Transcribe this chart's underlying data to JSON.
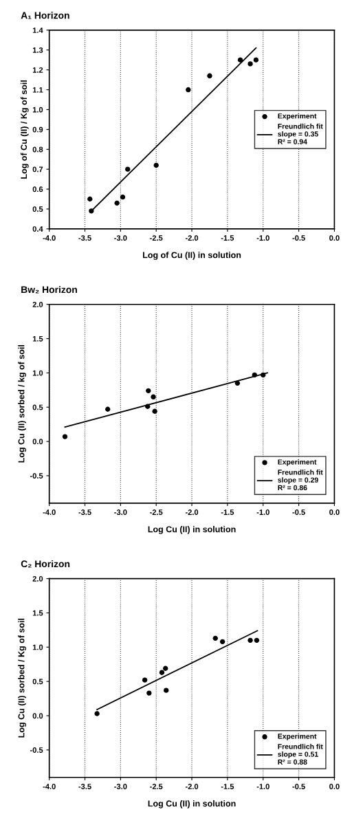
{
  "chart_data": [
    {
      "type": "scatter",
      "title": "A₁ Horizon",
      "xlabel": "Log of Cu (II) in solution",
      "ylabel": "Log of Cu (II) / Kg of soil",
      "xlim": [
        -4.0,
        0.0
      ],
      "ylim": [
        0.4,
        1.4
      ],
      "xticks": [
        {
          "value": -4,
          "label": "-4.0"
        },
        -3.5,
        {
          "value": -3,
          "label": "-3.0"
        },
        -2.5,
        {
          "value": -2,
          "label": "-2.0"
        },
        -1.5,
        {
          "value": -1,
          "label": "-1.0"
        },
        -0.5,
        {
          "value": 0,
          "label": "0.0"
        }
      ],
      "yticks": [
        0.4,
        0.5,
        0.6,
        0.7,
        0.8,
        0.9,
        {
          "value": 1,
          "label": "1.0"
        },
        1.1,
        1.2,
        1.3,
        1.4
      ],
      "grid": "x",
      "legend": "center right",
      "series": [
        {
          "name": "Experiment",
          "type": "scatter",
          "marker": "circle",
          "color": "#000000",
          "x": [
            -3.43,
            -3.41,
            -3.05,
            -2.97,
            -2.9,
            -2.5,
            -2.05,
            -1.75,
            -1.32,
            -1.18,
            -1.1
          ],
          "values": [
            0.55,
            0.49,
            0.53,
            0.56,
            0.7,
            0.72,
            1.1,
            1.17,
            1.25,
            1.23,
            1.25
          ]
        },
        {
          "name": "Freundlich fit\nslope = 0.35\nR² = 0.94",
          "type": "line",
          "line_style": "solid",
          "color": "#000000",
          "x": [
            -3.41,
            -1.1
          ],
          "values": [
            0.49,
            1.31
          ]
        }
      ]
    },
    {
      "type": "scatter",
      "title": "Bw₂ Horizon",
      "xlabel": "Log Cu (II) in solution",
      "ylabel": "Log Cu (II) sorbed / kg of soil",
      "xlim": [
        -4.0,
        0.0
      ],
      "ylim": [
        -0.9,
        2.0
      ],
      "xticks": [
        {
          "value": -4,
          "label": "-4.0"
        },
        -3.5,
        {
          "value": -3,
          "label": "-3.0"
        },
        -2.5,
        {
          "value": -2,
          "label": "-2.0"
        },
        -1.5,
        {
          "value": -1,
          "label": "-1.0"
        },
        -0.5,
        {
          "value": 0,
          "label": "0.0"
        }
      ],
      "yticks": [
        -0.5,
        {
          "value": 0,
          "label": "0.0"
        },
        0.5,
        {
          "value": 1,
          "label": "1.0"
        },
        1.5,
        {
          "value": 2,
          "label": "2.0"
        }
      ],
      "grid": "x",
      "legend": "lower right",
      "series": [
        {
          "name": "Experiment",
          "type": "scatter",
          "marker": "circle",
          "color": "#000000",
          "x": [
            -3.78,
            -3.18,
            -2.61,
            -2.62,
            -2.54,
            -2.52,
            -1.36,
            -1.12,
            -1.0
          ],
          "values": [
            0.07,
            0.47,
            0.74,
            0.51,
            0.65,
            0.44,
            0.85,
            0.97,
            0.97
          ]
        },
        {
          "name": "Freundlich fit\nslope = 0.29\nR² = 0.86",
          "type": "line",
          "line_style": "solid",
          "color": "#000000",
          "x": [
            -3.78,
            -0.94
          ],
          "values": [
            0.21,
            1.0
          ]
        }
      ]
    },
    {
      "type": "scatter",
      "title": "C₂ Horizon",
      "xlabel": "Log Cu (II) in solution",
      "ylabel": "Log Cu (II) sorbed / Kg of soil",
      "xlim": [
        -4.0,
        0.0
      ],
      "ylim": [
        -0.9,
        2.0
      ],
      "xticks": [
        {
          "value": -4,
          "label": "-4.0"
        },
        -3.5,
        {
          "value": -3,
          "label": "-3.0"
        },
        -2.5,
        {
          "value": -2,
          "label": "-2.0"
        },
        -1.5,
        {
          "value": -1,
          "label": "-1.0"
        },
        -0.5,
        {
          "value": 0,
          "label": "0.0"
        }
      ],
      "yticks": [
        -0.5,
        {
          "value": 0,
          "label": "0.0"
        },
        0.5,
        {
          "value": 1,
          "label": "1.0"
        },
        1.5,
        {
          "value": 2,
          "label": "2.0"
        }
      ],
      "grid": "x",
      "legend": "lower right",
      "series": [
        {
          "name": "Experiment",
          "type": "scatter",
          "marker": "circle",
          "color": "#000000",
          "x": [
            -3.33,
            -2.66,
            -2.6,
            -2.42,
            -2.37,
            -2.36,
            -1.67,
            -1.57,
            -1.18,
            -1.09
          ],
          "values": [
            0.03,
            0.52,
            0.33,
            0.63,
            0.69,
            0.37,
            1.13,
            1.08,
            1.1,
            1.1
          ]
        },
        {
          "name": "Freundlich fit\nslope = 0.51\nR² = 0.88",
          "type": "line",
          "line_style": "solid",
          "color": "#000000",
          "x": [
            -3.33,
            -1.08
          ],
          "values": [
            0.09,
            1.24
          ]
        }
      ]
    }
  ]
}
